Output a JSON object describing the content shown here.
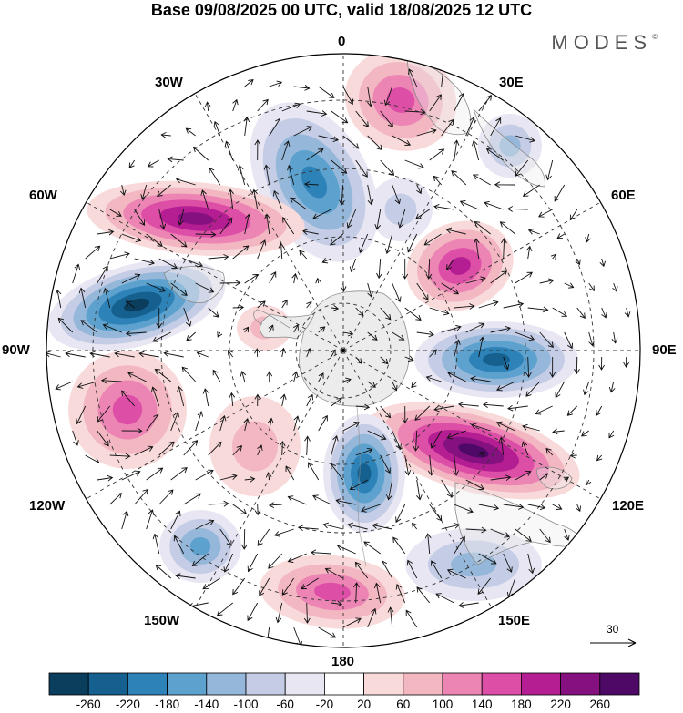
{
  "title": "Base 09/08/2025 00 UTC, valid 18/08/2025 12 UTC",
  "brand": "MODES",
  "brand_mark": "©",
  "longitude_labels": {
    "lon_0": "0",
    "lon_30e": "30E",
    "lon_60e": "60E",
    "lon_90e": "90E",
    "lon_120e": "120E",
    "lon_150e": "150E",
    "lon_180": "180",
    "lon_150w": "150W",
    "lon_120w": "120W",
    "lon_90w": "90W",
    "lon_60w": "60W",
    "lon_30w": "30W"
  },
  "reference_vector": "30",
  "colorbar": {
    "labels": [
      "-260",
      "-220",
      "-180",
      "-140",
      "-100",
      "-60",
      "-20",
      "20",
      "60",
      "100",
      "140",
      "180",
      "220",
      "260"
    ],
    "colors": [
      "#0b3d5c",
      "#15608f",
      "#2d82b8",
      "#5da2cf",
      "#95b7d9",
      "#c4cde5",
      "#e8e6f2",
      "#ffffff",
      "#f9dada",
      "#f3b7c2",
      "#ec85b4",
      "#dd4ea6",
      "#b51e92",
      "#851080",
      "#4e0866"
    ]
  },
  "map_colors": {
    "land": "#ececec",
    "land_outline": "#909090"
  },
  "anomaly_features": [
    {
      "name": "south-atlantic-north-positive",
      "sign": "positive",
      "peak": 140
    },
    {
      "name": "drake-passage-negative",
      "sign": "negative",
      "peak": -180
    },
    {
      "name": "south-atlantic-ridge",
      "sign": "positive",
      "peak": 220
    },
    {
      "name": "amundsen-negative",
      "sign": "negative",
      "peak": -260
    },
    {
      "name": "indian-ocean-positive",
      "sign": "positive",
      "peak": 180
    },
    {
      "name": "indian-ocean-negative",
      "sign": "negative",
      "peak": -220
    },
    {
      "name": "southern-ocean-120e-positive",
      "sign": "positive",
      "peak": 260
    },
    {
      "name": "ross-sea-negative",
      "sign": "negative",
      "peak": -220
    },
    {
      "name": "pacific-positive",
      "sign": "positive",
      "peak": 140
    }
  ]
}
